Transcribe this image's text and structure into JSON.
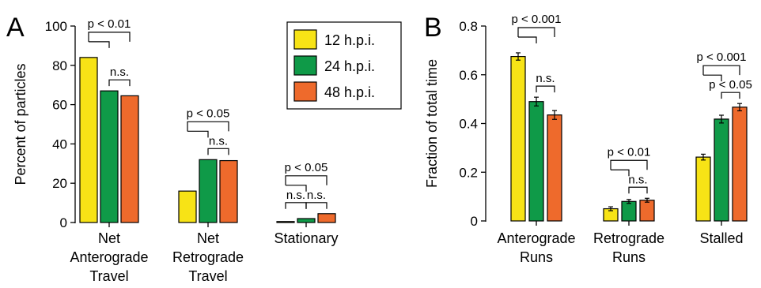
{
  "legend": {
    "entries": [
      {
        "label": "12 h.p.i.",
        "color": "#f7e316"
      },
      {
        "label": "24 h.p.i.",
        "color": "#0f9a48"
      },
      {
        "label": "48 h.p.i.",
        "color": "#ee6a2c"
      }
    ]
  },
  "chart_data": [
    {
      "panel": "A",
      "type": "bar",
      "ylabel": "Percent of particles",
      "ylim": [
        0,
        100
      ],
      "yticks": [
        "0",
        "20",
        "40",
        "60",
        "80",
        "100"
      ],
      "categories": [
        [
          "Net",
          "Anterograde",
          "Travel"
        ],
        [
          "Net",
          "Retrograde",
          "Travel"
        ],
        [
          "Stationary"
        ]
      ],
      "series": [
        {
          "name": "12 h.p.i.",
          "values": [
            84,
            16,
            0.5
          ]
        },
        {
          "name": "24 h.p.i.",
          "values": [
            67,
            32,
            2
          ]
        },
        {
          "name": "48 h.p.i.",
          "values": [
            64.5,
            31.5,
            4.5
          ]
        }
      ],
      "significance": [
        {
          "group": 0,
          "from": 0,
          "to": 2,
          "label": "p < 0.01"
        },
        {
          "group": 0,
          "from": 1,
          "to": 2,
          "label": "n.s."
        },
        {
          "group": 1,
          "from": 0,
          "to": 2,
          "label": "p < 0.05"
        },
        {
          "group": 1,
          "from": 1,
          "to": 2,
          "label": "n.s."
        },
        {
          "group": 2,
          "from": 0,
          "to": 2,
          "label": "p < 0.05"
        },
        {
          "group": 2,
          "from": 0,
          "to": 1,
          "label": "n.s."
        },
        {
          "group": 2,
          "from": 1,
          "to": 2,
          "label": "n.s."
        }
      ]
    },
    {
      "panel": "B",
      "type": "bar",
      "ylabel": "Fraction of total time",
      "ylim": [
        0,
        0.8
      ],
      "yticks": [
        "0",
        "0.2",
        "0.4",
        "0.6",
        "0.8"
      ],
      "categories": [
        [
          "Anterograde",
          "Runs"
        ],
        [
          "Retrograde",
          "Runs"
        ],
        [
          "Stalled"
        ]
      ],
      "series": [
        {
          "name": "12 h.p.i.",
          "values": [
            0.675,
            0.05,
            0.262
          ],
          "errors": [
            0.015,
            0.008,
            0.012
          ]
        },
        {
          "name": "24 h.p.i.",
          "values": [
            0.49,
            0.08,
            0.418
          ],
          "errors": [
            0.018,
            0.008,
            0.016
          ]
        },
        {
          "name": "48 h.p.i.",
          "values": [
            0.435,
            0.085,
            0.467
          ],
          "errors": [
            0.018,
            0.008,
            0.015
          ]
        }
      ],
      "significance": [
        {
          "group": 0,
          "from": 0,
          "to": 2,
          "label": "p < 0.001"
        },
        {
          "group": 0,
          "from": 1,
          "to": 2,
          "label": "n.s."
        },
        {
          "group": 1,
          "from": 0,
          "to": 2,
          "label": "p < 0.01"
        },
        {
          "group": 1,
          "from": 1,
          "to": 2,
          "label": "n.s."
        },
        {
          "group": 2,
          "from": 0,
          "to": 2,
          "label": "p < 0.001"
        },
        {
          "group": 2,
          "from": 1,
          "to": 2,
          "label": "p < 0.05"
        }
      ]
    }
  ]
}
